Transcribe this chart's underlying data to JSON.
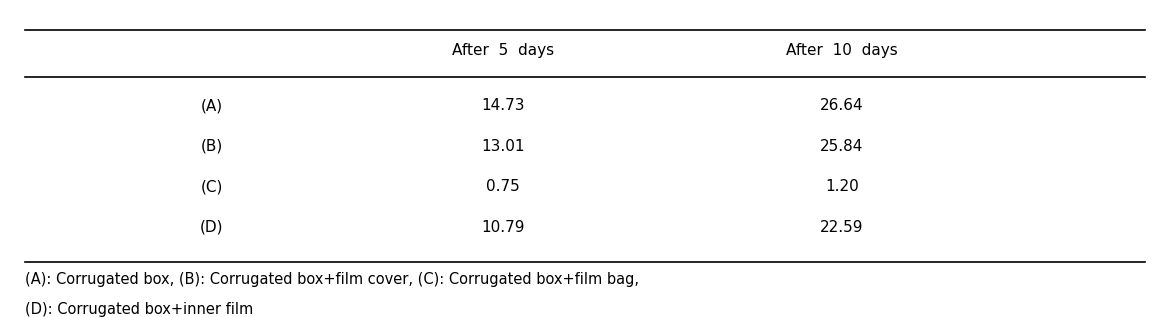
{
  "col_headers": [
    "",
    "After  5  days",
    "After  10  days"
  ],
  "rows": [
    [
      "(A)",
      "14.73",
      "26.64"
    ],
    [
      "(B)",
      "13.01",
      "25.84"
    ],
    [
      "(C)",
      "0.75",
      "1.20"
    ],
    [
      "(D)",
      "10.79",
      "22.59"
    ]
  ],
  "footnote_line1": "(A): Corrugated box, (B): Corrugated box+film cover, (C): Corrugated box+film bag,",
  "footnote_line2": "(D): Corrugated box+inner film",
  "bg_color": "#ffffff",
  "text_color": "#000000",
  "font_size": 11,
  "footnote_font_size": 10.5,
  "header_font_size": 11
}
